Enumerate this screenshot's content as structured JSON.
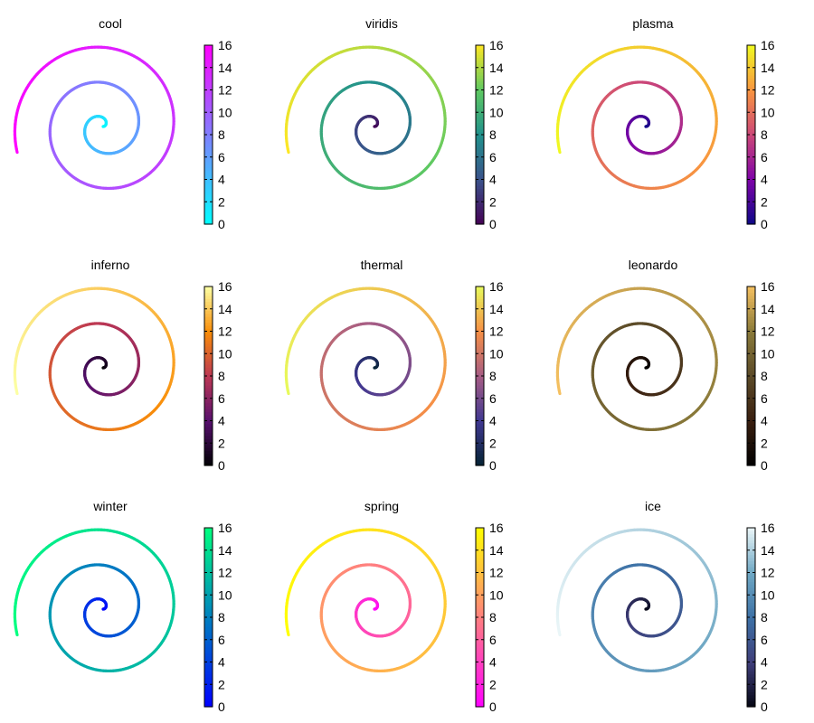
{
  "chart_data": [
    {
      "type": "scatter",
      "title": "cool",
      "colormap": "cool",
      "colorbar": {
        "range": [
          0,
          16
        ],
        "ticks": [
          0,
          2,
          4,
          6,
          8,
          10,
          12,
          14,
          16
        ]
      },
      "series": [
        {
          "shape": "spiral",
          "t_range": [
            0,
            16
          ]
        }
      ],
      "colors": [
        "#00ffff",
        "#ff00ff"
      ]
    },
    {
      "type": "scatter",
      "title": "viridis",
      "colormap": "viridis",
      "colorbar": {
        "range": [
          0,
          16
        ],
        "ticks": [
          0,
          2,
          4,
          6,
          8,
          10,
          12,
          14,
          16
        ]
      },
      "series": [
        {
          "shape": "spiral",
          "t_range": [
            0,
            16
          ]
        }
      ],
      "colors": [
        "#440154",
        "#3b528b",
        "#21918c",
        "#5ec962",
        "#fde725"
      ]
    },
    {
      "type": "scatter",
      "title": "plasma",
      "colormap": "plasma",
      "colorbar": {
        "range": [
          0,
          16
        ],
        "ticks": [
          0,
          2,
          4,
          6,
          8,
          10,
          12,
          14,
          16
        ]
      },
      "series": [
        {
          "shape": "spiral",
          "t_range": [
            0,
            16
          ]
        }
      ],
      "colors": [
        "#0d0887",
        "#7e03a8",
        "#cc4778",
        "#f89540",
        "#f0f921"
      ]
    },
    {
      "type": "scatter",
      "title": "inferno",
      "colormap": "inferno",
      "colorbar": {
        "range": [
          0,
          16
        ],
        "ticks": [
          0,
          2,
          4,
          6,
          8,
          10,
          12,
          14,
          16
        ]
      },
      "series": [
        {
          "shape": "spiral",
          "t_range": [
            0,
            16
          ]
        }
      ],
      "colors": [
        "#000004",
        "#57106e",
        "#bc3754",
        "#f98e09",
        "#fcffa4"
      ]
    },
    {
      "type": "scatter",
      "title": "thermal",
      "colormap": "thermal",
      "colorbar": {
        "range": [
          0,
          16
        ],
        "ticks": [
          0,
          2,
          4,
          6,
          8,
          10,
          12,
          14,
          16
        ]
      },
      "series": [
        {
          "shape": "spiral",
          "t_range": [
            0,
            16
          ]
        }
      ],
      "colors": [
        "#042333",
        "#403891",
        "#a65c85",
        "#f68f46",
        "#e8fa5b"
      ]
    },
    {
      "type": "scatter",
      "title": "leonardo",
      "colormap": "leonardo",
      "colorbar": {
        "range": [
          0,
          16
        ],
        "ticks": [
          0,
          2,
          4,
          6,
          8,
          10,
          12,
          14,
          16
        ]
      },
      "series": [
        {
          "shape": "spiral",
          "t_range": [
            0,
            16
          ]
        }
      ],
      "colors": [
        "#000000",
        "#3a1f10",
        "#5b4a28",
        "#8a7a3a",
        "#f5c060"
      ]
    },
    {
      "type": "scatter",
      "title": "winter",
      "colormap": "winter",
      "colorbar": {
        "range": [
          0,
          16
        ],
        "ticks": [
          0,
          2,
          4,
          6,
          8,
          10,
          12,
          14,
          16
        ]
      },
      "series": [
        {
          "shape": "spiral",
          "t_range": [
            0,
            16
          ]
        }
      ],
      "colors": [
        "#0000ff",
        "#00ff80"
      ]
    },
    {
      "type": "scatter",
      "title": "spring",
      "colormap": "spring",
      "colorbar": {
        "range": [
          0,
          16
        ],
        "ticks": [
          0,
          2,
          4,
          6,
          8,
          10,
          12,
          14,
          16
        ]
      },
      "series": [
        {
          "shape": "spiral",
          "t_range": [
            0,
            16
          ]
        }
      ],
      "colors": [
        "#ff00ff",
        "#ffff00"
      ]
    },
    {
      "type": "scatter",
      "title": "ice",
      "colormap": "ice",
      "colorbar": {
        "range": [
          0,
          16
        ],
        "ticks": [
          0,
          2,
          4,
          6,
          8,
          10,
          12,
          14,
          16
        ]
      },
      "series": [
        {
          "shape": "spiral",
          "t_range": [
            0,
            16
          ]
        }
      ],
      "colors": [
        "#040613",
        "#3f3e7a",
        "#3d71a6",
        "#6fa8c4",
        "#eaf6f8"
      ]
    }
  ]
}
